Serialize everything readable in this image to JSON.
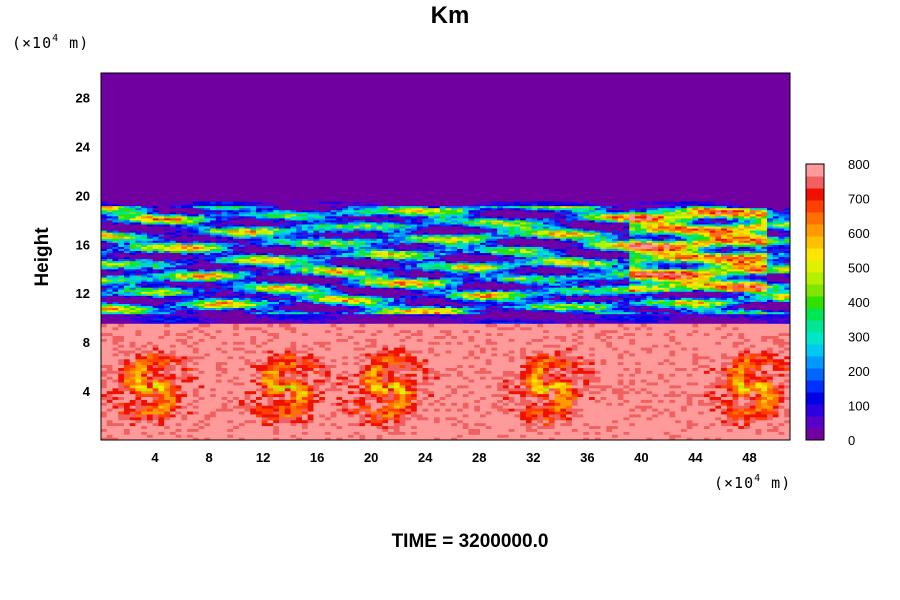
{
  "chart_data": {
    "type": "heatmap",
    "title": "Km",
    "ylabel": "Height",
    "y_unit": {
      "prefix": "(×10",
      "exp": "4",
      "suffix": " m)"
    },
    "x_unit": {
      "prefix": "(×10",
      "exp": "4",
      "suffix": " m)"
    },
    "xlim": [
      0,
      51
    ],
    "ylim": [
      0,
      30
    ],
    "x_ticks": [
      4,
      8,
      12,
      16,
      20,
      24,
      28,
      32,
      36,
      40,
      44,
      48
    ],
    "y_ticks": [
      4,
      8,
      12,
      16,
      20,
      24,
      28
    ],
    "colorbar": {
      "min": 0,
      "max": 800,
      "ticks": [
        0,
        100,
        200,
        300,
        400,
        500,
        600,
        700,
        800
      ],
      "colors": [
        "#7000a0",
        "#5a00c8",
        "#2c00e0",
        "#0000e6",
        "#0030ff",
        "#0066ff",
        "#0099ff",
        "#00c8f0",
        "#00e6c8",
        "#00e696",
        "#00e650",
        "#30e000",
        "#80e600",
        "#b4f000",
        "#e0f000",
        "#ffe600",
        "#ffc000",
        "#ff9a00",
        "#ff7000",
        "#ff4000",
        "#f01000",
        "#f06060",
        "#ff9a9a"
      ]
    },
    "fields": {
      "upper_region": {
        "y_range": [
          19.5,
          30
        ],
        "value": 0
      },
      "middle_region": {
        "y_range": [
          9.5,
          19.5
        ],
        "value_range": [
          0,
          800
        ]
      },
      "lower_region": {
        "y_range": [
          0,
          9.5
        ],
        "value_range": [
          500,
          800
        ]
      },
      "vortex_centers_x": [
        3.5,
        13.5,
        21,
        33,
        48
      ]
    },
    "footer": "TIME = 3200000.0"
  }
}
